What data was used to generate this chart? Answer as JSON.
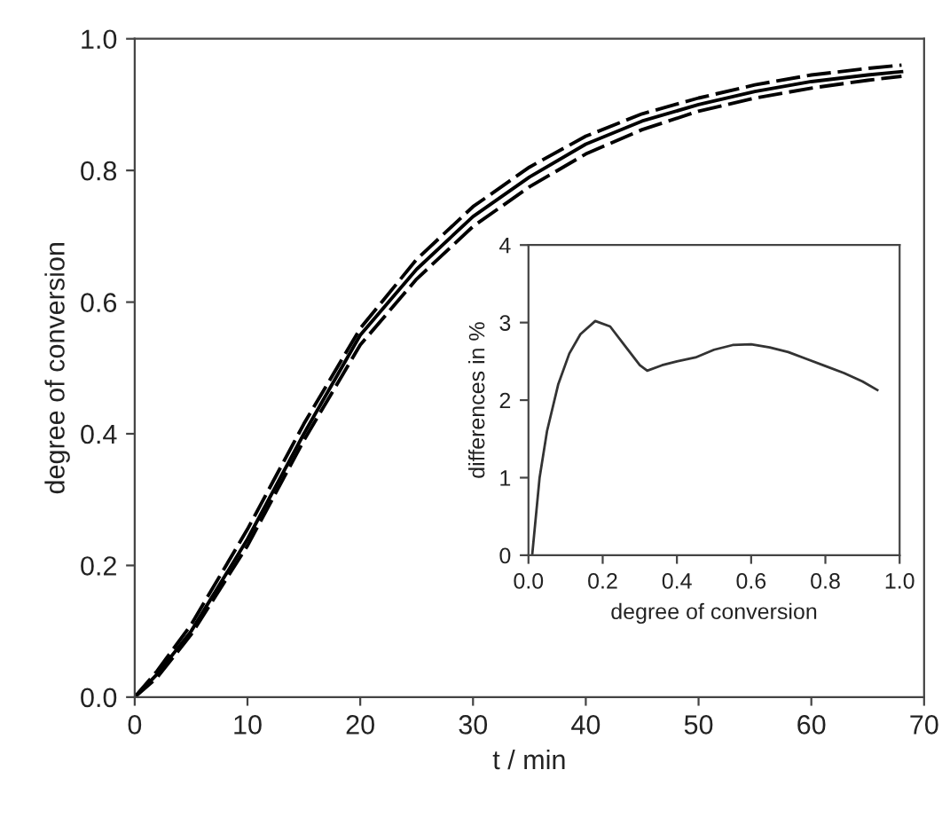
{
  "chart_data": [
    {
      "type": "line",
      "xlabel": "t / min",
      "ylabel": "degree of conversion",
      "xlim": [
        0,
        70
      ],
      "ylim": [
        0,
        1.0
      ],
      "xticks": [
        0,
        10,
        20,
        30,
        40,
        50,
        60,
        70
      ],
      "yticks": [
        {
          "value": 0,
          "label": "0.0"
        },
        {
          "value": 0.2,
          "label": "0.2"
        },
        {
          "value": 0.4,
          "label": "0.4"
        },
        {
          "value": 0.6,
          "label": "0.6"
        },
        {
          "value": 0.8,
          "label": "0.8"
        },
        {
          "value": 1.0,
          "label": "1.0"
        }
      ],
      "x": [
        0,
        2,
        5,
        10,
        15,
        20,
        25,
        30,
        35,
        40,
        45,
        50,
        55,
        60,
        65,
        68
      ],
      "series": [
        {
          "color": "#000000",
          "line_style": "solid",
          "values": [
            0,
            0.035,
            0.1,
            0.24,
            0.4,
            0.55,
            0.65,
            0.73,
            0.79,
            0.84,
            0.875,
            0.9,
            0.92,
            0.935,
            0.945,
            0.95
          ]
        },
        {
          "color": "#000000",
          "line_style": "dashed",
          "values": [
            0,
            0.04,
            0.11,
            0.255,
            0.415,
            0.56,
            0.665,
            0.745,
            0.805,
            0.852,
            0.886,
            0.91,
            0.93,
            0.945,
            0.955,
            0.96
          ]
        },
        {
          "color": "#000000",
          "line_style": "dashed",
          "values": [
            0,
            0.03,
            0.095,
            0.23,
            0.39,
            0.535,
            0.635,
            0.715,
            0.775,
            0.825,
            0.862,
            0.89,
            0.91,
            0.925,
            0.937,
            0.943
          ]
        }
      ],
      "grid": false
    },
    {
      "type": "line",
      "xlabel": "degree of conversion",
      "ylabel": "differences in %",
      "xlim": [
        0,
        1.0
      ],
      "ylim": [
        0,
        4
      ],
      "xticks": [
        {
          "value": 0,
          "label": "0.0"
        },
        {
          "value": 0.2,
          "label": "0.2"
        },
        {
          "value": 0.4,
          "label": "0.4"
        },
        {
          "value": 0.6,
          "label": "0.6"
        },
        {
          "value": 0.8,
          "label": "0.8"
        },
        {
          "value": 1.0,
          "label": "1.0"
        }
      ],
      "yticks": [
        0,
        1,
        2,
        3,
        4
      ],
      "x": [
        0.01,
        0.03,
        0.05,
        0.08,
        0.11,
        0.14,
        0.18,
        0.22,
        0.26,
        0.3,
        0.32,
        0.36,
        0.4,
        0.45,
        0.5,
        0.55,
        0.6,
        0.65,
        0.7,
        0.75,
        0.8,
        0.85,
        0.9,
        0.94
      ],
      "series": [
        {
          "color": "#333333",
          "line_style": "solid",
          "values": [
            0,
            1.0,
            1.6,
            2.2,
            2.6,
            2.85,
            3.02,
            2.95,
            2.7,
            2.45,
            2.38,
            2.45,
            2.5,
            2.55,
            2.65,
            2.71,
            2.72,
            2.68,
            2.62,
            2.53,
            2.44,
            2.35,
            2.24,
            2.13
          ]
        }
      ],
      "grid": false
    }
  ]
}
